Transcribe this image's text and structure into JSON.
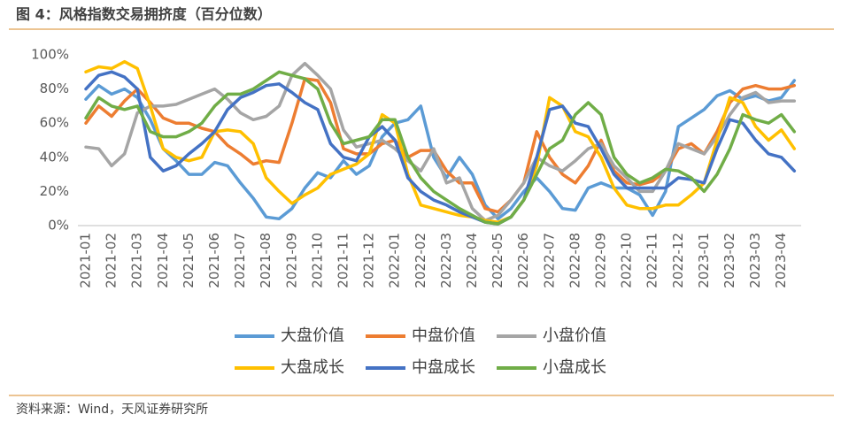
{
  "chart_data": {
    "type": "line",
    "title": "图 4：风格指数交易拥挤度（百分位数）",
    "source": "资料来源：Wind，天风证券研究所",
    "categories": [
      "2021-01",
      null,
      "2021-02",
      null,
      "2021-03",
      null,
      "2021-04",
      null,
      "2021-05",
      null,
      "2021-06",
      null,
      "2021-07",
      null,
      "2021-08",
      null,
      "2021-09",
      null,
      "2021-10",
      null,
      "2021-11",
      null,
      "2021-12",
      null,
      "2022-01",
      null,
      "2022-02",
      null,
      "2022-03",
      null,
      "2022-04",
      null,
      "2022-05",
      null,
      "2022-06",
      null,
      "2022-07",
      null,
      "2022-08",
      null,
      "2022-09",
      null,
      "2022-10",
      null,
      "2022-11",
      null,
      "2022-12",
      null,
      "2023-01",
      null,
      "2023-02",
      null,
      "2023-03",
      null,
      "2023-04",
      null
    ],
    "ylim": [
      0,
      100
    ],
    "yticks": [
      {
        "value": 0,
        "label": "0%"
      },
      {
        "value": 20,
        "label": "20%"
      },
      {
        "value": 40,
        "label": "40%"
      },
      {
        "value": 60,
        "label": "60%"
      },
      {
        "value": 80,
        "label": "80%"
      },
      {
        "value": 100,
        "label": "100%"
      }
    ],
    "grid": false,
    "series": [
      {
        "name": "大盘价值",
        "color": "#5b9bd5",
        "values": [
          74,
          82,
          77,
          80,
          75,
          62,
          45,
          38,
          30,
          30,
          37,
          35,
          25,
          16,
          5,
          4,
          10,
          22,
          31,
          28,
          38,
          30,
          35,
          52,
          60,
          62,
          70,
          40,
          28,
          40,
          30,
          12,
          4,
          10,
          20,
          28,
          20,
          10,
          9,
          22,
          25,
          22,
          22,
          18,
          6,
          20,
          58,
          63,
          68,
          76,
          79,
          74,
          76,
          73,
          75,
          85
        ]
      },
      {
        "name": "中盘价值",
        "color": "#ed7d31",
        "values": [
          60,
          70,
          64,
          73,
          80,
          72,
          63,
          60,
          60,
          57,
          55,
          47,
          42,
          36,
          38,
          37,
          60,
          86,
          85,
          72,
          45,
          42,
          42,
          48,
          50,
          40,
          44,
          44,
          32,
          25,
          25,
          10,
          8,
          15,
          25,
          55,
          40,
          30,
          25,
          35,
          50,
          32,
          25,
          24,
          26,
          32,
          45,
          48,
          42,
          55,
          72,
          80,
          82,
          80,
          80,
          82
        ]
      },
      {
        "name": "小盘价值",
        "color": "#a5a5a5",
        "values": [
          46,
          45,
          35,
          42,
          66,
          70,
          70,
          71,
          74,
          77,
          80,
          74,
          66,
          62,
          64,
          70,
          88,
          95,
          88,
          80,
          56,
          46,
          48,
          50,
          45,
          38,
          32,
          45,
          25,
          28,
          10,
          3,
          6,
          15,
          25,
          40,
          35,
          32,
          38,
          45,
          48,
          35,
          28,
          20,
          20,
          32,
          48,
          45,
          42,
          52,
          65,
          75,
          78,
          72,
          73,
          73
        ]
      },
      {
        "name": "大盘成长",
        "color": "#ffc000",
        "values": [
          90,
          93,
          92,
          96,
          92,
          70,
          45,
          40,
          38,
          40,
          55,
          56,
          55,
          48,
          28,
          20,
          13,
          18,
          22,
          30,
          33,
          36,
          42,
          65,
          60,
          30,
          12,
          10,
          8,
          6,
          5,
          3,
          2,
          5,
          15,
          35,
          75,
          70,
          55,
          52,
          40,
          22,
          12,
          10,
          10,
          12,
          12,
          18,
          25,
          50,
          75,
          72,
          58,
          50,
          56,
          45
        ]
      },
      {
        "name": "中盘成长",
        "color": "#4472c4",
        "values": [
          80,
          88,
          90,
          87,
          80,
          40,
          32,
          35,
          42,
          48,
          55,
          68,
          75,
          78,
          82,
          83,
          78,
          72,
          68,
          48,
          40,
          38,
          52,
          58,
          50,
          28,
          20,
          15,
          12,
          8,
          5,
          2,
          1,
          5,
          15,
          40,
          68,
          70,
          60,
          58,
          45,
          30,
          22,
          22,
          22,
          22,
          28,
          27,
          25,
          45,
          62,
          60,
          50,
          42,
          40,
          32
        ]
      },
      {
        "name": "小盘成长",
        "color": "#70ad47",
        "values": [
          63,
          75,
          70,
          68,
          70,
          55,
          52,
          52,
          55,
          60,
          70,
          77,
          77,
          80,
          85,
          90,
          88,
          86,
          80,
          60,
          48,
          50,
          52,
          62,
          62,
          40,
          28,
          20,
          15,
          10,
          6,
          2,
          1,
          5,
          15,
          30,
          45,
          50,
          65,
          72,
          65,
          40,
          30,
          25,
          28,
          33,
          32,
          28,
          20,
          30,
          45,
          65,
          62,
          60,
          65,
          55
        ]
      }
    ]
  }
}
